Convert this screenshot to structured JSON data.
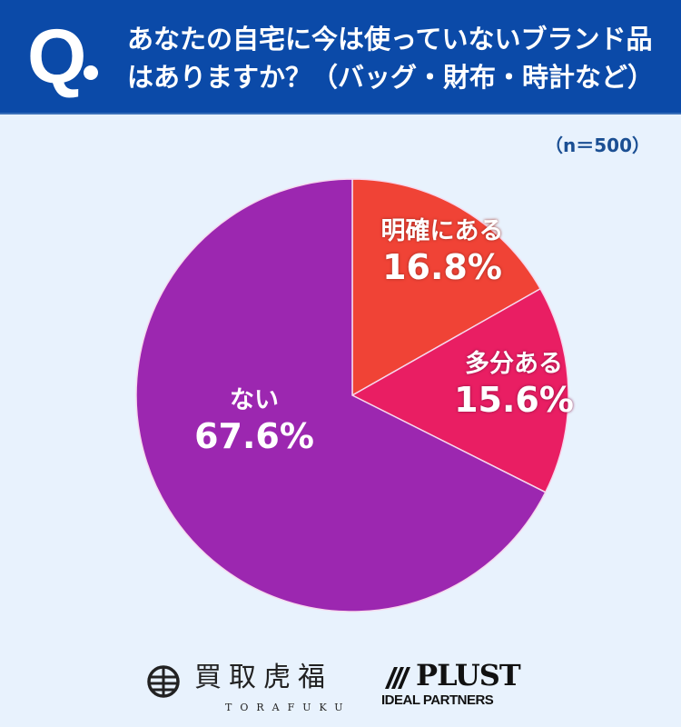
{
  "header": {
    "q_mark": "Q",
    "question": "あなたの自宅に今は使っていないブランド品はありますか？（バッグ・財布・時計など）",
    "color": "#0b4aa8"
  },
  "sample_size": "（n＝500）",
  "chart_data": {
    "type": "pie",
    "title": "あなたの自宅に今は使っていないブランド品はありますか？（バッグ・財布・時計など）",
    "subtitle": "（n＝500）",
    "categories": [
      "明確にある",
      "多分ある",
      "ない"
    ],
    "values": [
      16.8,
      15.6,
      67.6
    ],
    "unit": "%",
    "colors": [
      "#f04336",
      "#e91e63",
      "#9c27b0"
    ],
    "start_angle": "12 o'clock, clockwise",
    "labels": [
      {
        "name": "明確にある",
        "pct": "16.8%"
      },
      {
        "name": "多分ある",
        "pct": "15.6%"
      },
      {
        "name": "ない",
        "pct": "67.6%"
      }
    ]
  },
  "footer": {
    "logo1": {
      "name": "買取虎福",
      "sub": "TORAFUKU"
    },
    "logo2": {
      "name": "PLUST",
      "sub": "IDEAL PARTNERS"
    }
  }
}
